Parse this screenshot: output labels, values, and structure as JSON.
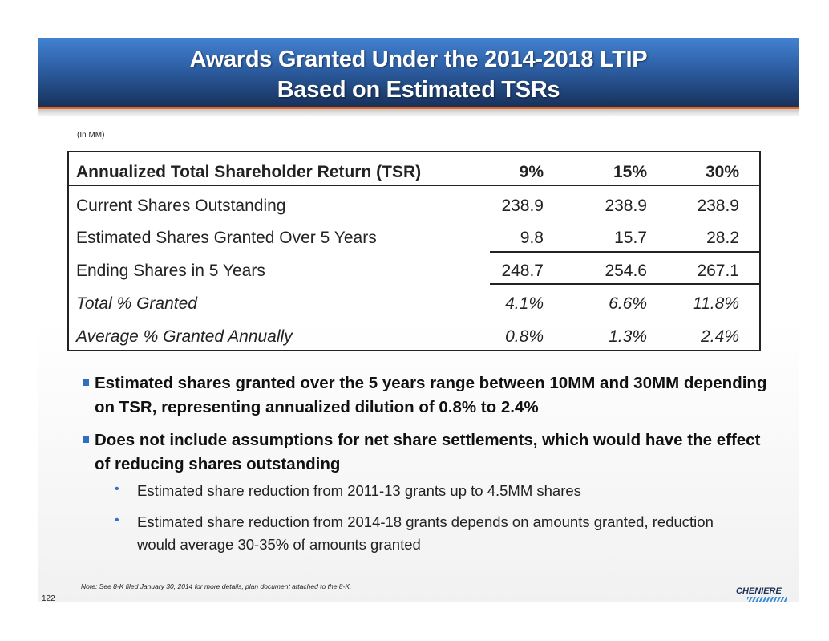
{
  "header": {
    "title_line1": "Awards Granted Under the 2014-2018 LTIP",
    "title_line2": "Based on Estimated TSRs"
  },
  "units": "(In MM)",
  "table": {
    "header": {
      "label": "Annualized Total Shareholder Return  (TSR)",
      "cols": [
        "9%",
        "15%",
        "30%"
      ]
    },
    "rows": [
      {
        "label": "Current Shares Outstanding",
        "values": [
          "238.9",
          "238.9",
          "238.9"
        ],
        "italic": false
      },
      {
        "label": "Estimated Shares Granted Over 5 Years",
        "values": [
          "9.8",
          "15.7",
          "28.2"
        ],
        "italic": false
      },
      {
        "label": "Ending Shares in 5 Years",
        "values": [
          "248.7",
          "254.6",
          "267.1"
        ],
        "italic": false
      },
      {
        "label": "Total % Granted",
        "values": [
          "4.1%",
          "6.6%",
          "11.8%"
        ],
        "italic": true
      },
      {
        "label": "Average % Granted Annually",
        "values": [
          "0.8%",
          "1.3%",
          "2.4%"
        ],
        "italic": true
      }
    ]
  },
  "bullets": [
    {
      "text": "Estimated shares granted over the 5 years range between 10MM and 30MM depending on TSR, representing annualized dilution of 0.8% to 2.4%"
    },
    {
      "text": "Does not include assumptions for net share settlements, which would have the effect of reducing shares outstanding",
      "sub": [
        "Estimated share reduction from 2011-13 grants up to 4.5MM shares",
        "Estimated share reduction from 2014-18 grants depends on amounts granted, reduction would average 30-35% of amounts granted"
      ]
    }
  ],
  "note": "Note:  See 8-K filed January 30, 2014 for more details, plan document attached to the 8-K.",
  "page_number": "122",
  "logo": "CHENIERE",
  "colors": {
    "header_top": "#4282d2",
    "header_bottom": "#17325c",
    "accent_orange": "#e8661c",
    "bullet_blue": "#2e6fc0"
  }
}
